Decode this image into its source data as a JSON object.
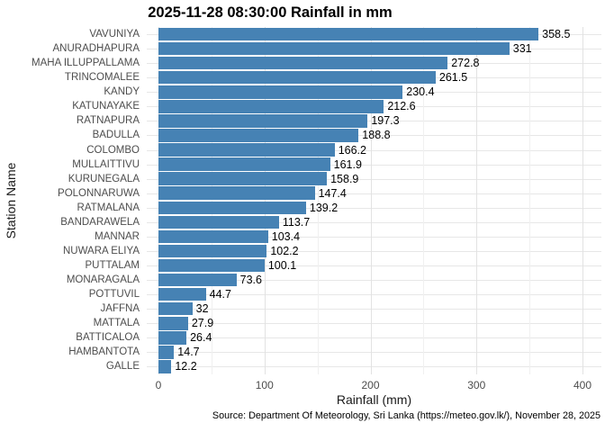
{
  "chart_data": {
    "type": "bar",
    "orientation": "horizontal",
    "title": "2025-11-28 08:30:00 Rainfall in mm",
    "xlabel": "Rainfall (mm)",
    "ylabel": "Station Name",
    "caption": "Source: Department Of Meteorology, Sri Lanka (https://meteo.gov.lk/), November 28, 2025",
    "categories": [
      "VAVUNIYA",
      "ANURADHAPURA",
      "MAHA ILLUPPALLAMA",
      "TRINCOMALEE",
      "KANDY",
      "KATUNAYAKE",
      "RATNAPURA",
      "BADULLA",
      "COLOMBO",
      "MULLAITTIVU",
      "KURUNEGALA",
      "POLONNARUWA",
      "RATMALANA",
      "BANDARAWELA",
      "MANNAR",
      "NUWARA ELIYA",
      "PUTTALAM",
      "MONARAGALA",
      "POTTUVIL",
      "JAFFNA",
      "MATTALA",
      "BATTICALOA",
      "HAMBANTOTA",
      "GALLE"
    ],
    "values": [
      358.5,
      331,
      272.8,
      261.5,
      230.4,
      212.6,
      197.3,
      188.8,
      166.2,
      161.9,
      158.9,
      147.4,
      139.2,
      113.7,
      103.4,
      102.2,
      100.1,
      73.6,
      44.7,
      32,
      27.9,
      26.4,
      14.7,
      12.2
    ],
    "xlim": [
      0,
      418
    ],
    "x_ticks": [
      0,
      100,
      200,
      300,
      400
    ],
    "x_minor_ticks": [
      50,
      150,
      250,
      350
    ],
    "bar_color": "#4682B4",
    "grid": true,
    "legend_position": "none"
  }
}
